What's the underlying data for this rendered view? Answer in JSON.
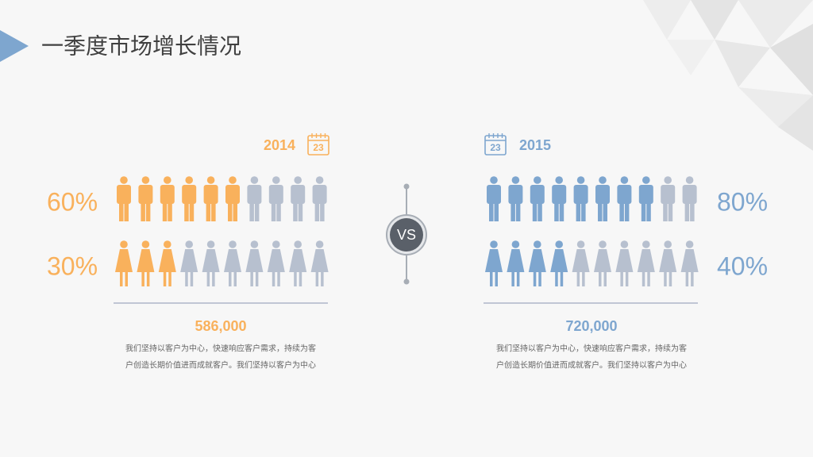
{
  "title": "一季度市场增长情况",
  "vs_label": "VS",
  "chart_data": [
    {
      "type": "pictogram",
      "title": "2014",
      "calendar_label": "23",
      "color": "#f9b15c",
      "empty_color": "#b7c0cf",
      "ylim": [
        0,
        100
      ],
      "values": [
        60,
        30
      ],
      "value_labels": [
        "60%",
        "30%"
      ],
      "total": "586,000",
      "caption": [
        "我们坚持以客户为中心，快速响应客户需求，持续为客",
        "户创造长期价值进而成就客户。我们坚持以客户为中心"
      ]
    },
    {
      "type": "pictogram",
      "title": "2015",
      "calendar_label": "23",
      "color": "#7ea6cf",
      "empty_color": "#b7c0cf",
      "ylim": [
        0,
        100
      ],
      "values": [
        80,
        40
      ],
      "value_labels": [
        "80%",
        "40%"
      ],
      "total": "720,000",
      "caption": [
        "我们坚持以客户为中心，快速响应客户需求，持续为客",
        "户创造长期价值进而成就客户。我们坚持以客户为中心"
      ]
    }
  ]
}
